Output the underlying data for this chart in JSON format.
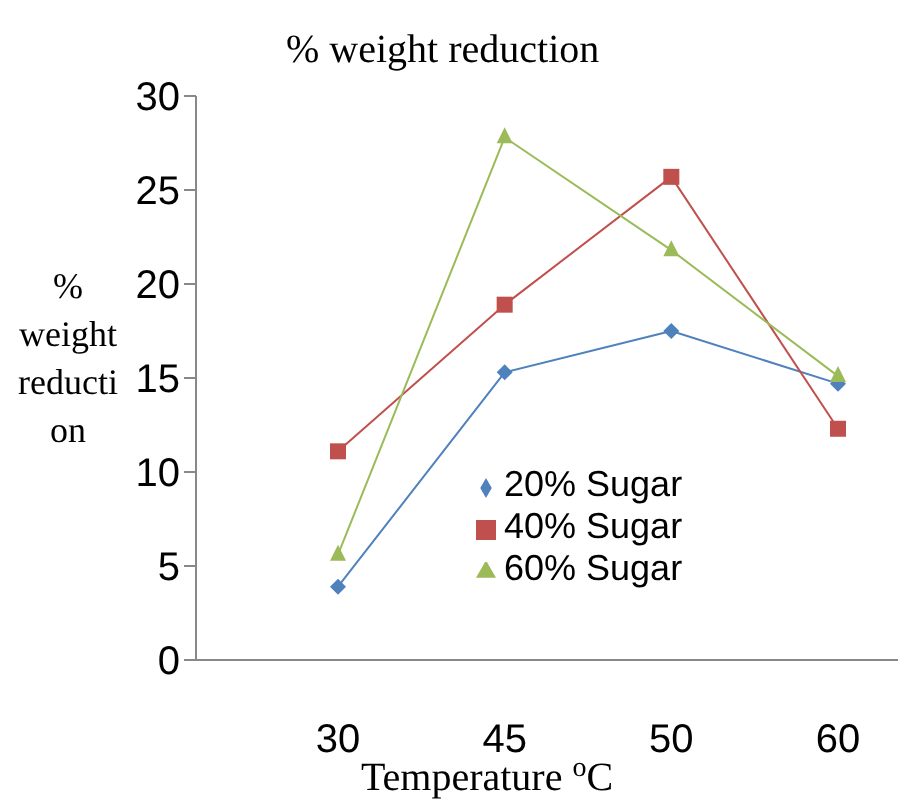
{
  "chart_data": {
    "type": "line",
    "title": "% weight reduction",
    "xlabel": "Temperature  $^{o}$C",
    "ylabel": "% weight reduction",
    "categories": [
      "30",
      "45",
      "50",
      "60"
    ],
    "series": [
      {
        "name": "20% Sugar",
        "color": "#4f81bd",
        "marker": "diamond",
        "values": [
          3.9,
          15.3,
          17.5,
          14.7
        ]
      },
      {
        "name": "40% Sugar",
        "color": "#c0504d",
        "marker": "square",
        "values": [
          11.1,
          18.9,
          25.7,
          12.3
        ]
      },
      {
        "name": "60% Sugar",
        "color": "#9bbb59",
        "marker": "triangle",
        "values": [
          5.6,
          27.8,
          21.8,
          15.1
        ]
      }
    ],
    "ylim": [
      0,
      30
    ],
    "yticks": [
      0,
      5,
      10,
      15,
      20,
      25,
      30
    ],
    "grid": false,
    "legend": "bottom right"
  }
}
